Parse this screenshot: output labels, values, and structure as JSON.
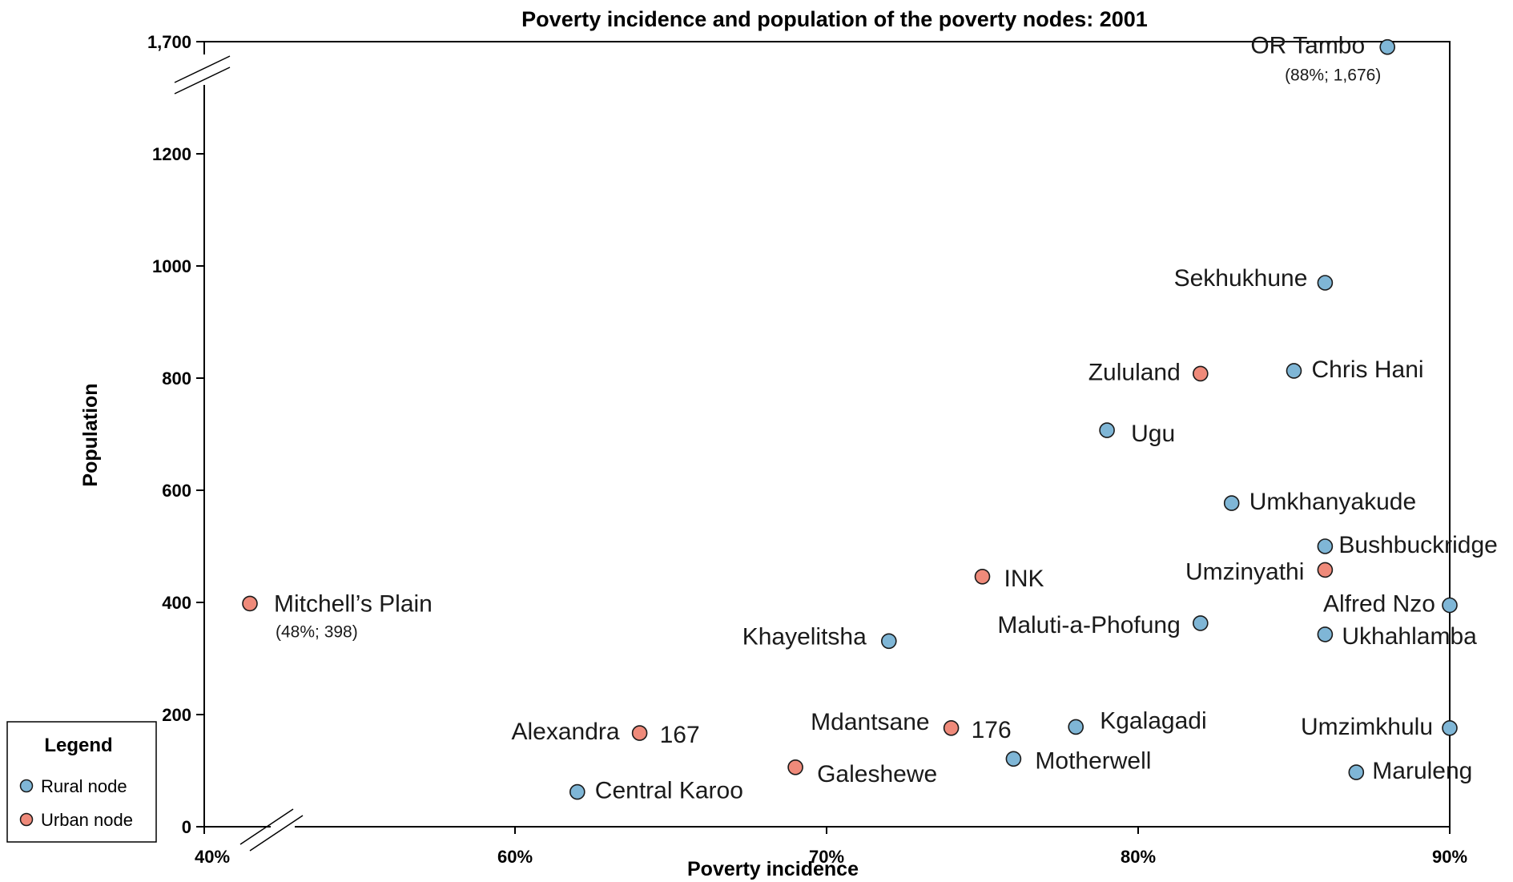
{
  "chart_data": {
    "type": "scatter",
    "title": "Poverty incidence and population of the poverty nodes: 2001",
    "xlabel": "Poverty incidence",
    "ylabel": "Population",
    "x_ticks": [
      "40%",
      "60%",
      "70%",
      "80%",
      "90%"
    ],
    "y_ticks": [
      "0",
      "200",
      "400",
      "600",
      "800",
      "1000",
      "1200",
      "1,700"
    ],
    "axis_breaks": "both axes broken (40%–60% on x, 1200–1,700 on y)",
    "grid": false,
    "legend": {
      "title": "Legend",
      "placement": "bottom-left",
      "entries": [
        {
          "label": "Rural node",
          "color": "#7fb6d6"
        },
        {
          "label": "Urban node",
          "color": "#ef8a7a"
        }
      ]
    },
    "colors": {
      "rural": "#7fb6d6",
      "urban": "#ef8a7a",
      "outline": "#1a1a1a"
    },
    "points": [
      {
        "name": "OR Tambo",
        "type": "rural",
        "x": 88,
        "y": 1676,
        "note": "(88%; 1,676)"
      },
      {
        "name": "Sekhukhune",
        "type": "rural",
        "x": 86,
        "y": 970
      },
      {
        "name": "Zululand",
        "type": "urban",
        "x": 82,
        "y": 808
      },
      {
        "name": "Chris Hani",
        "type": "rural",
        "x": 85,
        "y": 813
      },
      {
        "name": "Ugu",
        "type": "rural",
        "x": 79,
        "y": 707
      },
      {
        "name": "Umkhanyakude",
        "type": "rural",
        "x": 83,
        "y": 577
      },
      {
        "name": "Bushbuckridge",
        "type": "rural",
        "x": 86,
        "y": 500
      },
      {
        "name": "Umzinyathi",
        "type": "urban",
        "x": 86,
        "y": 458
      },
      {
        "name": "INK",
        "type": "urban",
        "x": 75,
        "y": 446
      },
      {
        "name": "Alfred Nzo",
        "type": "rural",
        "x": 90,
        "y": 395
      },
      {
        "name": "Maluti-a-Phofung",
        "type": "rural",
        "x": 82,
        "y": 363
      },
      {
        "name": "Ukhahlamba",
        "type": "rural",
        "x": 86,
        "y": 343
      },
      {
        "name": "Khayelitsha",
        "type": "rural",
        "x": 72,
        "y": 331
      },
      {
        "name": "Mitchell’s Plain",
        "type": "urban",
        "x": 48,
        "y": 398,
        "note": "(48%; 398)"
      },
      {
        "name": "Alexandra",
        "type": "urban",
        "x": 64,
        "y": 167,
        "value_label": "167"
      },
      {
        "name": "Mdantsane",
        "type": "urban",
        "x": 74,
        "y": 176,
        "value_label": "176"
      },
      {
        "name": "Kgalagadi",
        "type": "rural",
        "x": 78,
        "y": 178
      },
      {
        "name": "Umzimkhulu",
        "type": "rural",
        "x": 90,
        "y": 176
      },
      {
        "name": "Motherwell",
        "type": "rural",
        "x": 76,
        "y": 121
      },
      {
        "name": "Galeshewe",
        "type": "urban",
        "x": 69,
        "y": 106
      },
      {
        "name": "Maruleng",
        "type": "rural",
        "x": 87,
        "y": 97
      },
      {
        "name": "Central Karoo",
        "type": "rural",
        "x": 62,
        "y": 62
      }
    ]
  }
}
